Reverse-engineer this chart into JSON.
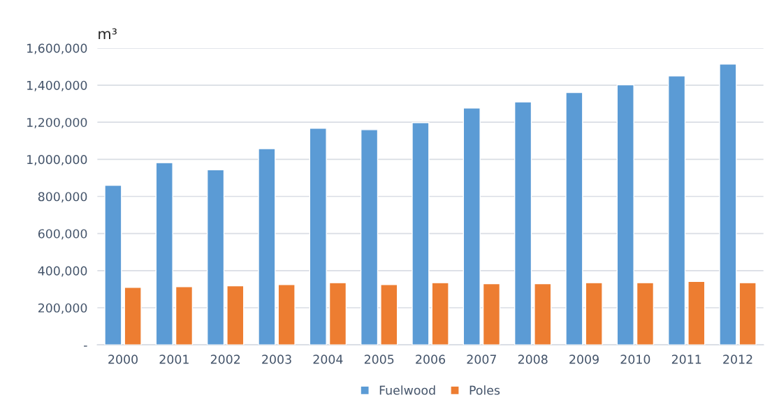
{
  "chart_data": {
    "type": "bar",
    "ylabel": "m³",
    "categories": [
      "2000",
      "2001",
      "2002",
      "2003",
      "2004",
      "2005",
      "2006",
      "2007",
      "2008",
      "2009",
      "2010",
      "2011",
      "2012"
    ],
    "series": [
      {
        "name": "Fuelwood",
        "color": "#5b9bd5",
        "values": [
          860000,
          982000,
          944000,
          1058000,
          1168000,
          1160000,
          1198000,
          1277000,
          1310000,
          1360000,
          1402000,
          1450000,
          1514000
        ]
      },
      {
        "name": "Poles",
        "color": "#ed7d31",
        "values": [
          310000,
          314000,
          318000,
          325000,
          335000,
          325000,
          335000,
          330000,
          330000,
          335000,
          335000,
          342000,
          335000
        ]
      }
    ],
    "ylim": [
      0,
      1600000
    ],
    "yticks": [
      {
        "value": 0,
        "label": "-"
      },
      {
        "value": 200000,
        "label": "200,000"
      },
      {
        "value": 400000,
        "label": "400,000"
      },
      {
        "value": 600000,
        "label": "600,000"
      },
      {
        "value": 800000,
        "label": "800,000"
      },
      {
        "value": 1000000,
        "label": "1,000,000"
      },
      {
        "value": 1200000,
        "label": "1,200,000"
      },
      {
        "value": 1400000,
        "label": "1,400,000"
      },
      {
        "value": 1600000,
        "label": "1,600,000"
      }
    ],
    "grid": "y",
    "legend": "bottom"
  }
}
